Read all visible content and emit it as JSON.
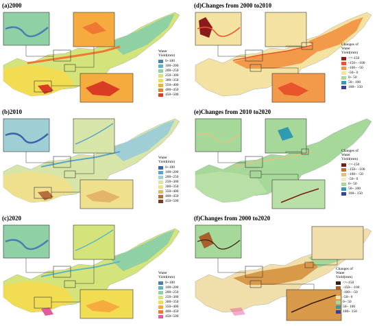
{
  "panels": [
    {
      "id": "a",
      "title": "(a)2000",
      "legend_title_lines": [
        "Water",
        "Yield(mm)"
      ],
      "legend": [
        {
          "label": "0~100",
          "color": "#4a7fb0"
        },
        {
          "label": "100~200",
          "color": "#5fb5c6"
        },
        {
          "label": "200~250",
          "color": "#8fd0a5"
        },
        {
          "label": "250~300",
          "color": "#d4e37a"
        },
        {
          "label": "300~350",
          "color": "#f2dc52"
        },
        {
          "label": "350~400",
          "color": "#f6ab3e"
        },
        {
          "label": "400~450",
          "color": "#ef7932"
        },
        {
          "label": "450~500",
          "color": "#d93c25"
        }
      ]
    },
    {
      "id": "b",
      "title": "(b)2010",
      "legend_title_lines": [
        "Water",
        "Yield(mm)"
      ],
      "legend": [
        {
          "label": "0~100",
          "color": "#3d64a8"
        },
        {
          "label": "100~200",
          "color": "#5aa3c9"
        },
        {
          "label": "200~250",
          "color": "#9fcfd4"
        },
        {
          "label": "250~300",
          "color": "#d7e6a8"
        },
        {
          "label": "300~350",
          "color": "#eee08d"
        },
        {
          "label": "350~400",
          "color": "#e3b46a"
        },
        {
          "label": "400~450",
          "color": "#b86e3a"
        },
        {
          "label": "450~500",
          "color": "#7d3b19"
        }
      ]
    },
    {
      "id": "c",
      "title": "(c)2020",
      "legend_title_lines": [
        "Water",
        "Yield(mm)"
      ],
      "legend": [
        {
          "label": "0~100",
          "color": "#4a7fb0"
        },
        {
          "label": "100~200",
          "color": "#5fb5c6"
        },
        {
          "label": "200~250",
          "color": "#8fd0a5"
        },
        {
          "label": "250~300",
          "color": "#d4e37a"
        },
        {
          "label": "300~350",
          "color": "#f2dc52"
        },
        {
          "label": "350~400",
          "color": "#f6ab3e"
        },
        {
          "label": "400~450",
          "color": "#ef7932"
        },
        {
          "label": "450~500",
          "color": "#e35b9b"
        }
      ]
    },
    {
      "id": "d",
      "title": "(d)Changes from 2000 to2010",
      "legend_title_lines": [
        "Changes of",
        "Water",
        "Yield(mm)"
      ],
      "legend": [
        {
          "label": "<=-150",
          "color": "#8b1a1a"
        },
        {
          "label": "-150~ -100",
          "color": "#e8542c"
        },
        {
          "label": "-100~ -50",
          "color": "#f29a4a"
        },
        {
          "label": "-50~ 0",
          "color": "#f3e2a1"
        },
        {
          "label": "0~ 50",
          "color": "#a6d89a"
        },
        {
          "label": "50~ 100",
          "color": "#2f9ab0"
        },
        {
          "label": "100~ 150",
          "color": "#3b3f99"
        }
      ]
    },
    {
      "id": "e",
      "title": "(e)Changes from 2010 to2020",
      "legend_title_lines": [
        "Changes of",
        "Water",
        "Yield(mm)"
      ],
      "legend": [
        {
          "label": "<=-150",
          "color": "#7a1b16"
        },
        {
          "label": "-150~ -100",
          "color": "#b8753e"
        },
        {
          "label": "-100~ -50",
          "color": "#e4c07f"
        },
        {
          "label": "-50~ 0",
          "color": "#f3ebc7"
        },
        {
          "label": "0~ 50",
          "color": "#a6d89a"
        },
        {
          "label": "50~ 100",
          "color": "#2f9ab0"
        },
        {
          "label": "100~ 150",
          "color": "#3b3f99"
        }
      ]
    },
    {
      "id": "f",
      "title": "(f)Changes from 2000 to2020",
      "legend_title_lines": [
        "Changes of",
        "Water",
        "Yield(mm)"
      ],
      "legend": [
        {
          "label": "<=-150",
          "color": "#3b1c10"
        },
        {
          "label": "-150~ -100",
          "color": "#a7602b"
        },
        {
          "label": "-100~ -50",
          "color": "#d89a49"
        },
        {
          "label": "-50~ 0",
          "color": "#f1dfab"
        },
        {
          "label": "0~ 50",
          "color": "#a6d89a"
        },
        {
          "label": "50~ 100",
          "color": "#2f9ab0"
        },
        {
          "label": "100~ 150",
          "color": "#3b3f99"
        }
      ]
    }
  ]
}
